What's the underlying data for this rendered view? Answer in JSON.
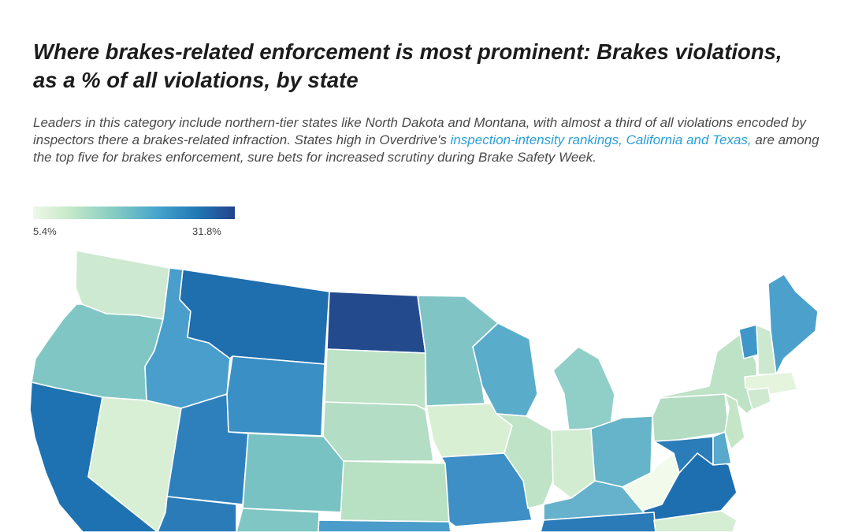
{
  "title": "Where brakes-related enforcement is most prominent: Brakes violations, as a % of all violations, by state",
  "subtitle": {
    "before_link": "Leaders in this category include northern-tier states like North Dakota and Montana, with almost a third of all violations encoded by inspectors there a brakes-related infraction. States high in Overdrive's ",
    "link": "inspection-intensity rankings, California and Texas,",
    "after_link": " are among the top five for brakes enforcement, sure bets for increased scrutiny during Brake Safety Week."
  },
  "legend": {
    "min_label": "5.4%",
    "max_label": "31.8%",
    "colors": [
      "#eef8e7",
      "#c6e8c8",
      "#80c9c2",
      "#45a3cc",
      "#2077b4",
      "#24418a"
    ]
  },
  "colors": {
    "link": "#2a9fd6",
    "title": "#1c1c1c",
    "subtitle": "#4a4a4a"
  },
  "map": {
    "states": [
      {
        "name": "Washington",
        "fill": "#cde9d1"
      },
      {
        "name": "Oregon",
        "fill": "#80c6c4"
      },
      {
        "name": "California",
        "fill": "#1f72b2"
      },
      {
        "name": "Nevada",
        "fill": "#d8efd5"
      },
      {
        "name": "Idaho",
        "fill": "#4a9ecb"
      },
      {
        "name": "Montana",
        "fill": "#1f6eae"
      },
      {
        "name": "Wyoming",
        "fill": "#3a8fc4"
      },
      {
        "name": "Utah",
        "fill": "#2e80bd"
      },
      {
        "name": "Arizona",
        "fill": "#2a7bb8"
      },
      {
        "name": "Colorado",
        "fill": "#79c2c4"
      },
      {
        "name": "North Dakota",
        "fill": "#244a8e"
      },
      {
        "name": "South Dakota",
        "fill": "#bde2c6"
      },
      {
        "name": "Nebraska",
        "fill": "#b3ddc4"
      },
      {
        "name": "Kansas",
        "fill": "#b8e0c2"
      },
      {
        "name": "Minnesota",
        "fill": "#80c4c6"
      },
      {
        "name": "Iowa",
        "fill": "#d9efd4"
      },
      {
        "name": "Missouri",
        "fill": "#3e8fc5"
      },
      {
        "name": "Wisconsin",
        "fill": "#5aaccb"
      },
      {
        "name": "Illinois",
        "fill": "#bfe3c7"
      },
      {
        "name": "Michigan",
        "fill": "#90cec8"
      },
      {
        "name": "Indiana",
        "fill": "#d2ecd2"
      },
      {
        "name": "Ohio",
        "fill": "#66b4c9"
      },
      {
        "name": "Kentucky",
        "fill": "#66b1cb"
      },
      {
        "name": "West Virginia",
        "fill": "#f2faec"
      },
      {
        "name": "Virginia",
        "fill": "#1e6fb0"
      },
      {
        "name": "Pennsylvania",
        "fill": "#b3dcc3"
      },
      {
        "name": "New York",
        "fill": "#bde2c6"
      },
      {
        "name": "Vermont",
        "fill": "#3f96c8"
      },
      {
        "name": "New Hampshire",
        "fill": "#cce9cf"
      },
      {
        "name": "Maine",
        "fill": "#4ba1cc"
      },
      {
        "name": "Massachusetts",
        "fill": "#e4f4dd"
      },
      {
        "name": "Connecticut",
        "fill": "#cfe9d0"
      },
      {
        "name": "New Jersey",
        "fill": "#c4e6c7"
      },
      {
        "name": "Maryland",
        "fill": "#2a7db9"
      },
      {
        "name": "Delaware",
        "fill": "#58a9cb"
      },
      {
        "name": "Oklahoma",
        "fill": "#4a9dca"
      },
      {
        "name": "Tennessee",
        "fill": "#2a7bb8"
      },
      {
        "name": "North Carolina",
        "fill": "#d4edd3"
      },
      {
        "name": "New Mexico",
        "fill": "#80c6c4"
      }
    ]
  }
}
